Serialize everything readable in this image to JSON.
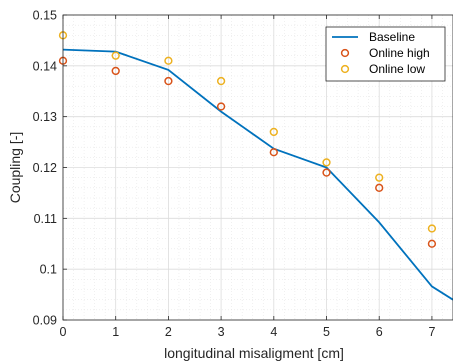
{
  "chart_data": {
    "type": "line",
    "xlabel": "longitudinal misaligment [cm]",
    "ylabel": "Coupling [-]",
    "xlim": [
      0,
      7.4
    ],
    "ylim": [
      0.09,
      0.15
    ],
    "xticks": [
      0,
      1,
      2,
      3,
      4,
      5,
      6,
      7
    ],
    "yticks": [
      0.09,
      0.1,
      0.11,
      0.12,
      0.13,
      0.14,
      0.15
    ],
    "ytick_labels": [
      "0.09",
      "0.1",
      "0.11",
      "0.12",
      "0.13",
      "0.14",
      "0.15"
    ],
    "grid": "major and minor",
    "legend_position": "top-right",
    "series": [
      {
        "name": "Baseline",
        "style": "line",
        "color": "#0072BD",
        "x": [
          0,
          1,
          2,
          3,
          4,
          5,
          6,
          7,
          7.4
        ],
        "y": [
          0.1432,
          0.1428,
          0.1392,
          0.131,
          0.1237,
          0.12,
          0.1092,
          0.0966,
          0.094
        ]
      },
      {
        "name": "Online high",
        "style": "marker",
        "color": "#D95319",
        "x": [
          0,
          1,
          2,
          3,
          4,
          5,
          6,
          7
        ],
        "y": [
          0.141,
          0.139,
          0.137,
          0.132,
          0.123,
          0.119,
          0.116,
          0.105
        ]
      },
      {
        "name": "Online low",
        "style": "marker",
        "color": "#EDB120",
        "x": [
          0,
          1,
          2,
          3,
          4,
          5,
          6,
          7
        ],
        "y": [
          0.146,
          0.142,
          0.141,
          0.137,
          0.127,
          0.121,
          0.118,
          0.108
        ]
      }
    ]
  }
}
